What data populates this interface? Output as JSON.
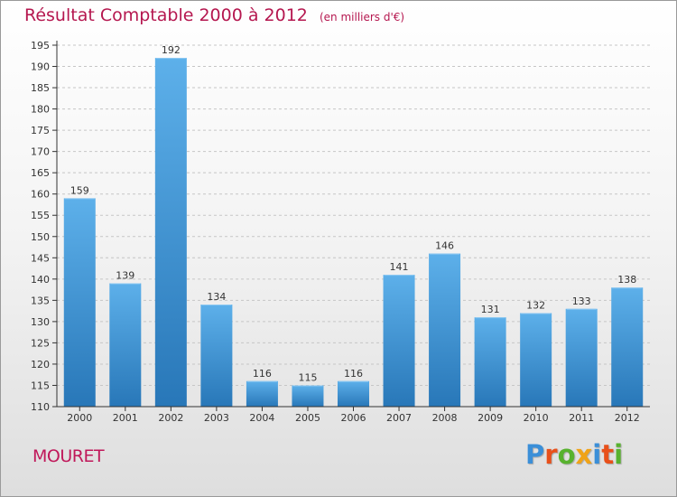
{
  "title": "Résultat Comptable 2000 à 2012",
  "subtitle": "(en milliers d'€)",
  "commune": "MOURET",
  "logo": {
    "letters": [
      "P",
      "r",
      "o",
      "x",
      "i",
      "t",
      "i"
    ],
    "colors": [
      "#3b8fd8",
      "#e8501a",
      "#58b22e",
      "#f0a318",
      "#3b8fd8",
      "#e8501a",
      "#58b22e"
    ]
  },
  "colors": {
    "bar_light": "#5aaee8",
    "bar_dark": "#2a7bbd",
    "title": "#b5174f",
    "axis": "#333333",
    "grid": "#c8c8c8"
  },
  "chart_data": {
    "type": "bar",
    "title": "Résultat Comptable 2000 à 2012",
    "xlabel": "",
    "ylabel": "",
    "categories": [
      "2000",
      "2001",
      "2002",
      "2003",
      "2004",
      "2005",
      "2006",
      "2007",
      "2008",
      "2009",
      "2010",
      "2011",
      "2012"
    ],
    "values": [
      159,
      139,
      192,
      134,
      116,
      115,
      116,
      141,
      146,
      131,
      132,
      133,
      138
    ],
    "ylim": [
      110,
      195
    ],
    "yticks": [
      110,
      115,
      120,
      125,
      130,
      135,
      140,
      145,
      150,
      155,
      160,
      165,
      170,
      175,
      180,
      185,
      190,
      195
    ],
    "grid": "horizontal-dashed"
  }
}
